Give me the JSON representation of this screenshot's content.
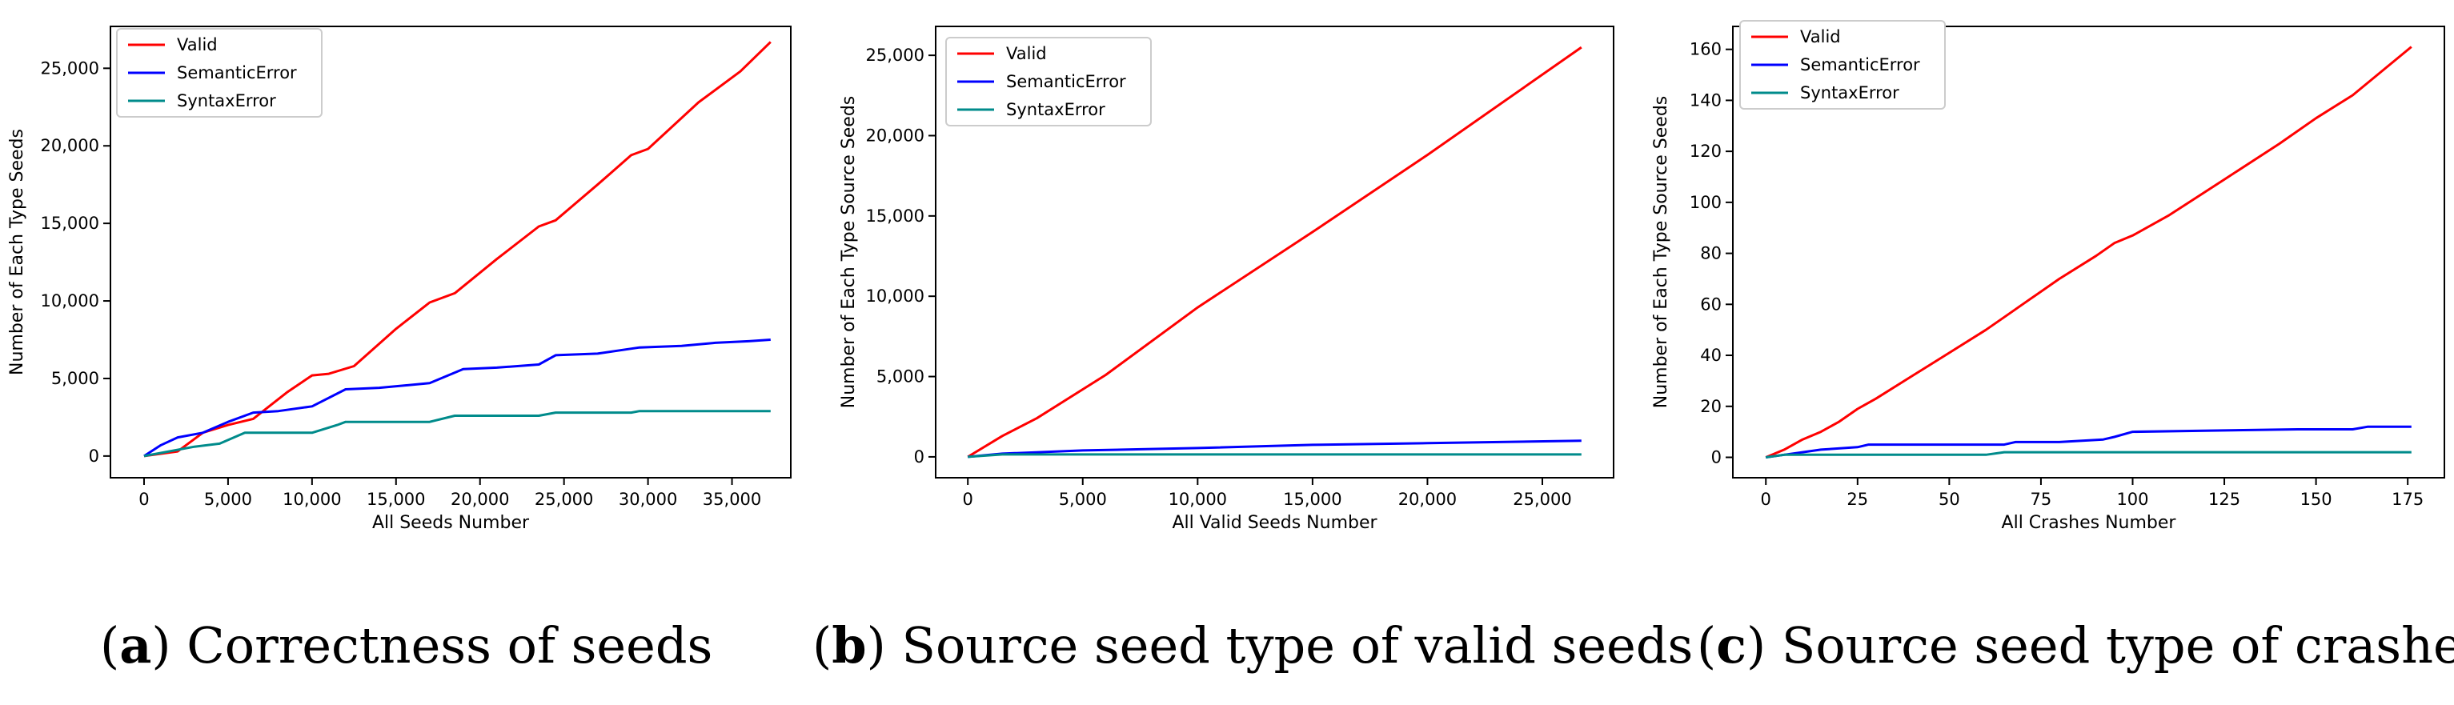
{
  "chart_data": [
    {
      "type": "line",
      "xlabel": "All Seeds Number",
      "ylabel": "Number of Each Type Seeds",
      "xlim": [
        -2000,
        38500
      ],
      "ylim": [
        -1400,
        27700
      ],
      "xticks": [
        0,
        5000,
        10000,
        15000,
        20000,
        25000,
        30000,
        35000
      ],
      "xtick_labels": [
        "0",
        "5,000",
        "10,000",
        "15,000",
        "20,000",
        "25,000",
        "30,000",
        "35,000"
      ],
      "yticks": [
        0,
        5000,
        10000,
        15000,
        20000,
        25000
      ],
      "ytick_labels": [
        "0",
        "5,000",
        "10,000",
        "15,000",
        "20,000",
        "25,000"
      ],
      "legend": "top-left",
      "grid": false,
      "series": [
        {
          "name": "Valid",
          "color": "#ff0000",
          "x": [
            0,
            2000,
            3500,
            5000,
            6500,
            8500,
            10000,
            11000,
            12500,
            15000,
            17000,
            18500,
            21000,
            23500,
            24500,
            27000,
            29000,
            30000,
            33000,
            35500,
            37300
          ],
          "y": [
            0,
            300,
            1500,
            2000,
            2400,
            4100,
            5200,
            5300,
            5800,
            8200,
            9900,
            10500,
            12700,
            14800,
            15200,
            17500,
            19400,
            19800,
            22800,
            24800,
            26700
          ]
        },
        {
          "name": "SemanticError",
          "color": "#0000ff",
          "x": [
            0,
            1000,
            2000,
            3500,
            5000,
            6500,
            8000,
            10000,
            12000,
            14000,
            17000,
            19000,
            21000,
            23500,
            24500,
            27000,
            29500,
            32000,
            34000,
            36000,
            37300
          ],
          "y": [
            0,
            700,
            1200,
            1500,
            2200,
            2800,
            2900,
            3200,
            4300,
            4400,
            4700,
            5600,
            5700,
            5900,
            6500,
            6600,
            7000,
            7100,
            7300,
            7400,
            7500
          ]
        },
        {
          "name": "SyntaxError",
          "color": "#008b8b",
          "x": [
            0,
            3000,
            4500,
            6000,
            10000,
            11500,
            12000,
            17000,
            18500,
            23500,
            24500,
            29000,
            29500,
            37300
          ],
          "y": [
            0,
            600,
            800,
            1500,
            1500,
            2000,
            2200,
            2200,
            2600,
            2600,
            2800,
            2800,
            2900,
            2900
          ]
        }
      ]
    },
    {
      "type": "line",
      "xlabel": "All Valid Seeds Number",
      "ylabel": "Number of Each Type Source Seeds",
      "xlim": [
        -1400,
        28100
      ],
      "ylim": [
        -1300,
        26800
      ],
      "xticks": [
        0,
        5000,
        10000,
        15000,
        20000,
        25000
      ],
      "xtick_labels": [
        "0",
        "5,000",
        "10,000",
        "15,000",
        "20,000",
        "25,000"
      ],
      "yticks": [
        0,
        5000,
        10000,
        15000,
        20000,
        25000
      ],
      "ytick_labels": [
        "0",
        "5,000",
        "10,000",
        "15,000",
        "20,000",
        "25,000"
      ],
      "legend": "top-left",
      "grid": false,
      "series": [
        {
          "name": "Valid",
          "color": "#ff0000",
          "x": [
            0,
            1500,
            3000,
            6000,
            10000,
            15000,
            20000,
            26700
          ],
          "y": [
            0,
            1300,
            2400,
            5100,
            9300,
            14000,
            18800,
            25500
          ]
        },
        {
          "name": "SemanticError",
          "color": "#0000ff",
          "x": [
            0,
            1500,
            5000,
            10000,
            15000,
            20000,
            26700
          ],
          "y": [
            0,
            200,
            400,
            550,
            750,
            850,
            1000
          ]
        },
        {
          "name": "SyntaxError",
          "color": "#008b8b",
          "x": [
            0,
            1500,
            5000,
            26700
          ],
          "y": [
            0,
            150,
            150,
            150
          ]
        }
      ]
    },
    {
      "type": "line",
      "xlabel": "All Crashes Number",
      "ylabel": "Number of Each Type Source Seeds",
      "xlim": [
        -9,
        185
      ],
      "ylim": [
        -8,
        169
      ],
      "xticks": [
        0,
        25,
        50,
        75,
        100,
        125,
        150,
        175
      ],
      "xtick_labels": [
        "0",
        "25",
        "50",
        "75",
        "100",
        "125",
        "150",
        "175"
      ],
      "yticks": [
        0,
        20,
        40,
        60,
        80,
        100,
        120,
        140,
        160
      ],
      "ytick_labels": [
        "0",
        "20",
        "40",
        "60",
        "80",
        "100",
        "120",
        "140",
        "160"
      ],
      "legend": "top-left",
      "grid": false,
      "series": [
        {
          "name": "Valid",
          "color": "#ff0000",
          "x": [
            0,
            5,
            10,
            15,
            20,
            25,
            30,
            40,
            50,
            60,
            65,
            68,
            70,
            80,
            90,
            95,
            100,
            110,
            125,
            140,
            150,
            160,
            176
          ],
          "y": [
            0,
            3,
            7,
            10,
            14,
            19,
            23,
            32,
            41,
            50,
            55,
            58,
            60,
            70,
            79,
            84,
            87,
            95,
            109,
            123,
            133,
            142,
            161
          ]
        },
        {
          "name": "SemanticError",
          "color": "#0000ff",
          "x": [
            0,
            5,
            10,
            15,
            25,
            28,
            60,
            65,
            68,
            80,
            92,
            95,
            100,
            145,
            160,
            164,
            176
          ],
          "y": [
            0,
            1,
            2,
            3,
            4,
            5,
            5,
            5,
            6,
            6,
            7,
            8,
            10,
            11,
            11,
            12,
            12
          ]
        },
        {
          "name": "SyntaxError",
          "color": "#008b8b",
          "x": [
            0,
            5,
            10,
            15,
            60,
            65,
            67,
            176
          ],
          "y": [
            0,
            1,
            1,
            1,
            1,
            2,
            2,
            2
          ]
        }
      ]
    }
  ],
  "captions": [
    {
      "letter": "a",
      "text": "Correctness of seeds"
    },
    {
      "letter": "b",
      "text": "Source seed type of valid seeds"
    },
    {
      "letter": "c",
      "text": "Source seed type of crashes"
    }
  ]
}
